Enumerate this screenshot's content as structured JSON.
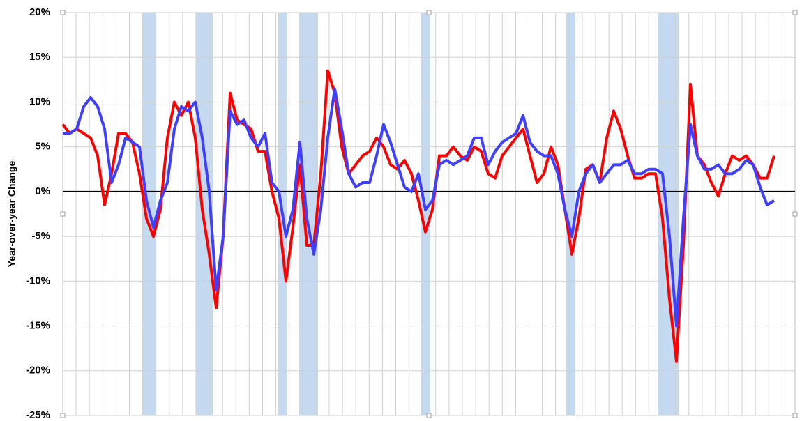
{
  "chart_data": {
    "type": "line",
    "ylabel": "Year-over-year Change",
    "ylim": [
      -25,
      20
    ],
    "yticks": [
      {
        "value": -25,
        "label": "-25%"
      },
      {
        "value": -20,
        "label": "-20%"
      },
      {
        "value": -15,
        "label": "-15%"
      },
      {
        "value": -10,
        "label": "-10%"
      },
      {
        "value": -5,
        "label": "-5%"
      },
      {
        "value": 0,
        "label": "0%"
      },
      {
        "value": 5,
        "label": "5%"
      },
      {
        "value": 10,
        "label": "10%"
      },
      {
        "value": 15,
        "label": "15%"
      },
      {
        "value": 20,
        "label": "20%"
      }
    ],
    "grid": true,
    "shaded_ranges": [
      [
        11.5,
        13.3
      ],
      [
        19.1,
        21.6
      ],
      [
        30.9,
        32.1
      ],
      [
        33.9,
        36.6
      ],
      [
        51.4,
        52.7
      ],
      [
        72.1,
        73.5
      ],
      [
        85.3,
        88.3
      ]
    ],
    "shade_color": "#c5d9f1",
    "series": [
      {
        "color": "#ff0000",
        "values": [
          7.5,
          6.5,
          7,
          6.5,
          6,
          4,
          -1.5,
          2,
          6.5,
          6.5,
          5.5,
          2,
          -3,
          -5,
          -2,
          6,
          10,
          8.5,
          10,
          6,
          -2,
          -7,
          -13,
          -5,
          11,
          8,
          7.5,
          7,
          4.5,
          4.5,
          0,
          -3,
          -10,
          -4,
          3,
          -6,
          -6,
          2,
          13.5,
          11,
          5,
          2,
          3,
          4,
          4.5,
          6,
          5,
          3,
          2.5,
          3.5,
          2,
          -1,
          -4.5,
          -2,
          4,
          4,
          5,
          4,
          3.5,
          5,
          4.5,
          2,
          1.5,
          4,
          5,
          6,
          7,
          4,
          1,
          2,
          5,
          3,
          -2,
          -7,
          -3,
          2.5,
          3,
          1,
          6,
          9,
          7,
          4,
          1.5,
          1.5,
          2,
          2,
          -3,
          -12,
          -19,
          -6,
          12,
          4,
          3,
          1,
          -0.5,
          2,
          4,
          3.5,
          4,
          3,
          1.5,
          1.5,
          4
        ]
      },
      {
        "color": "#3f3fff",
        "values": [
          6.5,
          6.5,
          7,
          9.5,
          10.5,
          9.5,
          7,
          1,
          3,
          6,
          5.5,
          5,
          -1,
          -4,
          -1,
          1,
          7,
          9.5,
          9,
          10,
          6,
          0,
          -11,
          -5,
          9,
          7.5,
          8,
          6,
          5,
          6.5,
          1,
          0,
          -5,
          -2,
          5.5,
          -3,
          -7,
          -2,
          6,
          11.5,
          7,
          2,
          0.5,
          1,
          1,
          4,
          7.5,
          5.5,
          3,
          0.5,
          0,
          2,
          -2,
          -1,
          3,
          3.5,
          3,
          3.5,
          4,
          6,
          6,
          3,
          4.5,
          5.5,
          6,
          6.5,
          8.5,
          5.5,
          4.5,
          4,
          4,
          2,
          -2,
          -5,
          0,
          2,
          3,
          1,
          2,
          3,
          3,
          3.5,
          2,
          2,
          2.5,
          2.5,
          2,
          -5,
          -15,
          -3,
          7.5,
          4,
          2.5,
          2.5,
          3,
          2,
          2,
          2.5,
          3.5,
          3,
          0.5,
          -1.5,
          -1
        ]
      }
    ]
  }
}
